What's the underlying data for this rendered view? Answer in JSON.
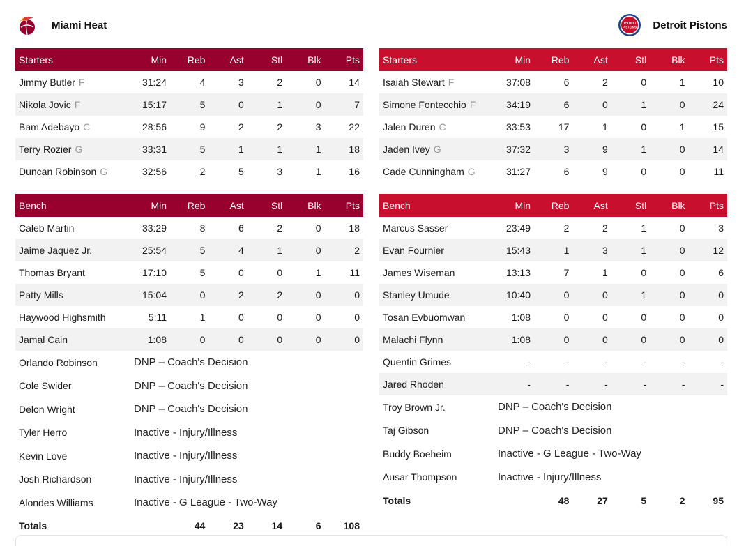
{
  "colors": {
    "heat": "#98002e",
    "pistons": "#c8102e"
  },
  "home": {
    "name": "Miami Heat",
    "logo_icon": "miami-heat-logo",
    "headers": [
      "Min",
      "Reb",
      "Ast",
      "Stl",
      "Blk",
      "Pts"
    ],
    "starters_label": "Starters",
    "bench_label": "Bench",
    "starters": [
      {
        "name": "Jimmy Butler",
        "pos": "F",
        "min": "31:24",
        "reb": "4",
        "ast": "3",
        "stl": "2",
        "blk": "0",
        "pts": "14"
      },
      {
        "name": "Nikola Jovic",
        "pos": "F",
        "min": "15:17",
        "reb": "5",
        "ast": "0",
        "stl": "1",
        "blk": "0",
        "pts": "7"
      },
      {
        "name": "Bam Adebayo",
        "pos": "C",
        "min": "28:56",
        "reb": "9",
        "ast": "2",
        "stl": "2",
        "blk": "3",
        "pts": "22"
      },
      {
        "name": "Terry Rozier",
        "pos": "G",
        "min": "33:31",
        "reb": "5",
        "ast": "1",
        "stl": "1",
        "blk": "1",
        "pts": "18"
      },
      {
        "name": "Duncan Robinson",
        "pos": "G",
        "min": "32:56",
        "reb": "2",
        "ast": "5",
        "stl": "3",
        "blk": "1",
        "pts": "16"
      }
    ],
    "bench": [
      {
        "name": "Caleb Martin",
        "min": "33:29",
        "reb": "8",
        "ast": "6",
        "stl": "2",
        "blk": "0",
        "pts": "18"
      },
      {
        "name": "Jaime Jaquez Jr.",
        "min": "25:54",
        "reb": "5",
        "ast": "4",
        "stl": "1",
        "blk": "0",
        "pts": "2"
      },
      {
        "name": "Thomas Bryant",
        "min": "17:10",
        "reb": "5",
        "ast": "0",
        "stl": "0",
        "blk": "1",
        "pts": "11"
      },
      {
        "name": "Patty Mills",
        "min": "15:04",
        "reb": "0",
        "ast": "2",
        "stl": "2",
        "blk": "0",
        "pts": "0"
      },
      {
        "name": "Haywood Highsmith",
        "min": "5:11",
        "reb": "1",
        "ast": "0",
        "stl": "0",
        "blk": "0",
        "pts": "0"
      },
      {
        "name": "Jamal Cain",
        "min": "1:08",
        "reb": "0",
        "ast": "0",
        "stl": "0",
        "blk": "0",
        "pts": "0"
      }
    ],
    "inactive": [
      {
        "name": "Orlando Robinson",
        "status": "DNP – Coach's Decision"
      },
      {
        "name": "Cole Swider",
        "status": "DNP – Coach's Decision"
      },
      {
        "name": "Delon Wright",
        "status": "DNP – Coach's Decision"
      },
      {
        "name": "Tyler Herro",
        "status": "Inactive - Injury/Illness"
      },
      {
        "name": "Kevin Love",
        "status": "Inactive - Injury/Illness"
      },
      {
        "name": "Josh Richardson",
        "status": "Inactive - Injury/Illness"
      },
      {
        "name": "Alondes Williams",
        "status": "Inactive - G League - Two-Way"
      }
    ],
    "totals": {
      "label": "Totals",
      "reb": "44",
      "ast": "23",
      "stl": "14",
      "blk": "6",
      "pts": "108"
    }
  },
  "away": {
    "name": "Detroit Pistons",
    "logo_icon": "detroit-pistons-logo",
    "logo_text": [
      "DETROIT",
      "PISTONS"
    ],
    "headers": [
      "Min",
      "Reb",
      "Ast",
      "Stl",
      "Blk",
      "Pts"
    ],
    "starters_label": "Starters",
    "bench_label": "Bench",
    "starters": [
      {
        "name": "Isaiah Stewart",
        "pos": "F",
        "min": "37:08",
        "reb": "6",
        "ast": "2",
        "stl": "0",
        "blk": "1",
        "pts": "10"
      },
      {
        "name": "Simone Fontecchio",
        "pos": "F",
        "min": "34:19",
        "reb": "6",
        "ast": "0",
        "stl": "1",
        "blk": "0",
        "pts": "24"
      },
      {
        "name": "Jalen Duren",
        "pos": "C",
        "min": "33:53",
        "reb": "17",
        "ast": "1",
        "stl": "0",
        "blk": "1",
        "pts": "15"
      },
      {
        "name": "Jaden Ivey",
        "pos": "G",
        "min": "37:32",
        "reb": "3",
        "ast": "9",
        "stl": "1",
        "blk": "0",
        "pts": "14"
      },
      {
        "name": "Cade Cunningham",
        "pos": "G",
        "min": "31:27",
        "reb": "6",
        "ast": "9",
        "stl": "0",
        "blk": "0",
        "pts": "11"
      }
    ],
    "bench": [
      {
        "name": "Marcus Sasser",
        "min": "23:49",
        "reb": "2",
        "ast": "2",
        "stl": "1",
        "blk": "0",
        "pts": "3"
      },
      {
        "name": "Evan Fournier",
        "min": "15:43",
        "reb": "1",
        "ast": "3",
        "stl": "1",
        "blk": "0",
        "pts": "12"
      },
      {
        "name": "James Wiseman",
        "min": "13:13",
        "reb": "7",
        "ast": "1",
        "stl": "0",
        "blk": "0",
        "pts": "6"
      },
      {
        "name": "Stanley Umude",
        "min": "10:40",
        "reb": "0",
        "ast": "0",
        "stl": "1",
        "blk": "0",
        "pts": "0"
      },
      {
        "name": "Tosan Evbuomwan",
        "min": "1:08",
        "reb": "0",
        "ast": "0",
        "stl": "0",
        "blk": "0",
        "pts": "0"
      },
      {
        "name": "Malachi Flynn",
        "min": "1:08",
        "reb": "0",
        "ast": "0",
        "stl": "0",
        "blk": "0",
        "pts": "0"
      },
      {
        "name": "Quentin Grimes",
        "min": "-",
        "reb": "-",
        "ast": "-",
        "stl": "-",
        "blk": "-",
        "pts": "-"
      },
      {
        "name": "Jared Rhoden",
        "min": "-",
        "reb": "-",
        "ast": "-",
        "stl": "-",
        "blk": "-",
        "pts": "-"
      }
    ],
    "inactive": [
      {
        "name": "Troy Brown Jr.",
        "status": "DNP – Coach's Decision"
      },
      {
        "name": "Taj Gibson",
        "status": "DNP – Coach's Decision"
      },
      {
        "name": "Buddy Boeheim",
        "status": "Inactive - G League - Two-Way"
      },
      {
        "name": "Ausar Thompson",
        "status": "Inactive - Injury/Illness"
      }
    ],
    "totals": {
      "label": "Totals",
      "reb": "48",
      "ast": "27",
      "stl": "5",
      "blk": "2",
      "pts": "95"
    }
  }
}
